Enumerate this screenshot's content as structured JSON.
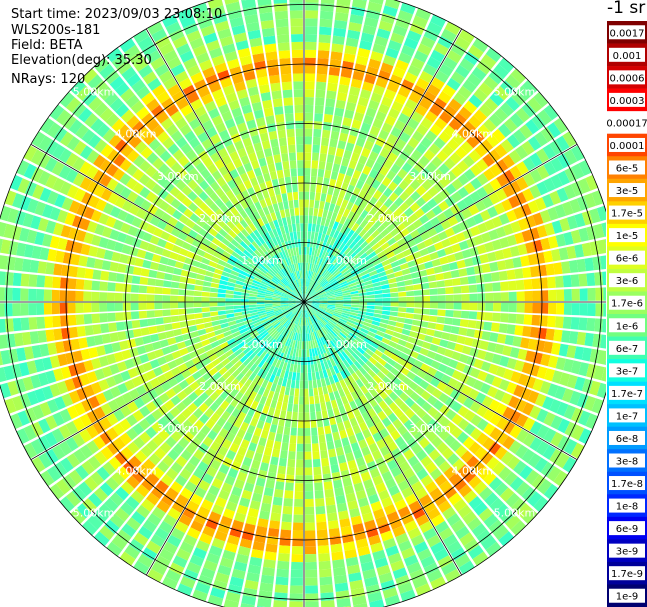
{
  "header": {
    "start_time": "Start time: 2023/09/03 23:08:10",
    "device": "WLS200s-181",
    "field": "Field: BETA",
    "elevation": "Elevation(deg): 35.30",
    "nrays": "NRays: 120"
  },
  "colorbar": {
    "unit": "-1 sr",
    "labels": [
      "0.0017",
      "0.001",
      "0.0006",
      "0.0003",
      "0.00017",
      "0.0001",
      "6e-5",
      "3e-5",
      "1.7e-5",
      "1e-5",
      "6e-6",
      "3e-6",
      "1.7e-6",
      "1e-6",
      "6e-7",
      "3e-7",
      "1.7e-7",
      "1e-7",
      "6e-8",
      "3e-8",
      "1.7e-8",
      "1e-8",
      "6e-9",
      "3e-9",
      "1.7e-9",
      "1e-9"
    ],
    "colors": [
      "#7f0000",
      "#b00000",
      "#d40000",
      "#ff0000",
      "#ffffff",
      "#ff4500",
      "#ff8000",
      "#ffa500",
      "#ffd000",
      "#ffff00",
      "#dfff20",
      "#c0ff40",
      "#9aff60",
      "#70ff80",
      "#40ffb0",
      "#10ffe0",
      "#00e0ff",
      "#00c0ff",
      "#009cff",
      "#0070ff",
      "#0050ff",
      "#0028ff",
      "#0000f0",
      "#0000c0",
      "#00009a",
      "#000070"
    ]
  },
  "chart_data": {
    "type": "heatmap",
    "subtype": "polar-ppi",
    "quantity": "BETA",
    "rays": 120,
    "range_rings_km": [
      1,
      2,
      3,
      4,
      5
    ],
    "ring_labels": [
      "1.00km",
      "2.00km",
      "3.00km",
      "4.00km",
      "5.00km"
    ],
    "max_range_km": 5.3,
    "azimuth_spokes_deg": [
      0,
      30,
      60,
      90,
      120,
      150,
      180,
      210,
      240,
      270,
      300,
      330
    ],
    "grid": true,
    "description_values": {
      "near_range_log_beta": -6.2,
      "mid_range_log_beta": -5.6,
      "peak_band_range_km": 4.0,
      "peak_band_log_beta": -4.0,
      "outer_range_log_beta": -5.9
    }
  }
}
